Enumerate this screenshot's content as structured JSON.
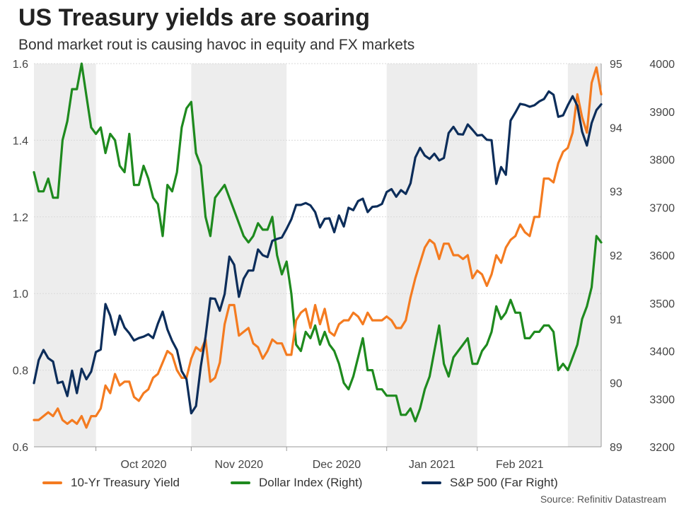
{
  "title": "US Treasury yields are soaring",
  "subtitle": "Bond market rout is causing havoc in equity and FX markets",
  "source": "Source: Refinitiv Datastream",
  "chart_data": {
    "type": "line",
    "title": "US Treasury yields are soaring",
    "x_tick_labels": [
      "Oct 2020",
      "Nov 2020",
      "Dec 2020",
      "Jan 2021",
      "Feb 2021"
    ],
    "n_points": 120,
    "shaded_periods": [
      [
        0,
        13
      ],
      [
        33,
        53
      ],
      [
        74,
        93
      ],
      [
        112,
        120
      ]
    ],
    "axes": {
      "left": {
        "ylim": [
          0.6,
          1.6
        ],
        "ticks": [
          "0.6",
          "0.8",
          "1.0",
          "1.2",
          "1.4",
          "1.6"
        ]
      },
      "right": {
        "ylim": [
          89,
          95
        ],
        "ticks": [
          "89",
          "90",
          "91",
          "92",
          "93",
          "94",
          "95"
        ]
      },
      "far_right": {
        "ylim": [
          3200,
          4000
        ],
        "ticks": [
          "3200",
          "3300",
          "3400",
          "3500",
          "3600",
          "3700",
          "3800",
          "3900",
          "4000"
        ]
      }
    },
    "series": [
      {
        "name": "10-Yr Treasury Yield",
        "axis": "left",
        "color": "#f47b20",
        "values": [
          0.67,
          0.67,
          0.68,
          0.69,
          0.68,
          0.7,
          0.67,
          0.66,
          0.67,
          0.66,
          0.68,
          0.65,
          0.68,
          0.68,
          0.7,
          0.76,
          0.74,
          0.79,
          0.76,
          0.77,
          0.77,
          0.73,
          0.72,
          0.74,
          0.75,
          0.78,
          0.79,
          0.82,
          0.85,
          0.84,
          0.8,
          0.78,
          0.78,
          0.83,
          0.86,
          0.85,
          0.88,
          0.77,
          0.78,
          0.82,
          0.92,
          0.97,
          0.97,
          0.89,
          0.9,
          0.91,
          0.87,
          0.86,
          0.83,
          0.85,
          0.88,
          0.87,
          0.87,
          0.84,
          0.84,
          0.93,
          0.95,
          0.96,
          0.91,
          0.97,
          0.92,
          0.96,
          0.9,
          0.89,
          0.92,
          0.93,
          0.93,
          0.95,
          0.94,
          0.92,
          0.95,
          0.93,
          0.93,
          0.93,
          0.94,
          0.93,
          0.91,
          0.91,
          0.93,
          0.99,
          1.04,
          1.08,
          1.12,
          1.14,
          1.13,
          1.09,
          1.13,
          1.13,
          1.1,
          1.1,
          1.09,
          1.1,
          1.04,
          1.06,
          1.05,
          1.02,
          1.05,
          1.1,
          1.08,
          1.12,
          1.14,
          1.15,
          1.18,
          1.16,
          1.15,
          1.2,
          1.2,
          1.3,
          1.3,
          1.29,
          1.34,
          1.37,
          1.38,
          1.42,
          1.52,
          1.46,
          1.42,
          1.55,
          1.59,
          1.52
        ]
      },
      {
        "name": "Dollar Index (Right)",
        "axis": "right",
        "color": "#1e8a1e",
        "values": [
          93.3,
          93.0,
          93.0,
          93.2,
          92.9,
          92.9,
          93.8,
          94.1,
          94.6,
          94.6,
          95.0,
          94.5,
          94.0,
          93.9,
          94.0,
          93.6,
          93.9,
          93.8,
          93.4,
          93.3,
          93.9,
          93.1,
          93.1,
          93.4,
          93.2,
          92.9,
          92.8,
          92.3,
          93.1,
          93.0,
          93.3,
          94.0,
          94.3,
          94.4,
          93.6,
          93.4,
          92.6,
          92.3,
          92.9,
          93.0,
          93.1,
          92.9,
          92.7,
          92.5,
          92.3,
          92.2,
          92.3,
          92.5,
          92.4,
          92.4,
          92.6,
          92.0,
          91.7,
          91.9,
          91.4,
          90.6,
          90.5,
          90.8,
          90.7,
          90.9,
          90.6,
          90.8,
          90.6,
          90.5,
          90.3,
          90.0,
          89.9,
          90.1,
          90.4,
          90.7,
          90.2,
          90.2,
          89.9,
          89.9,
          89.8,
          89.8,
          89.8,
          89.5,
          89.5,
          89.6,
          89.4,
          89.6,
          89.9,
          90.1,
          90.5,
          90.9,
          90.3,
          90.1,
          90.4,
          90.5,
          90.6,
          90.7,
          90.3,
          90.3,
          90.5,
          90.6,
          90.8,
          91.2,
          91.0,
          91.1,
          91.3,
          91.1,
          91.1,
          90.7,
          90.7,
          90.8,
          90.8,
          90.9,
          90.9,
          90.8,
          90.2,
          90.3,
          90.2,
          90.4,
          90.6,
          91.0,
          91.2,
          91.5,
          92.3,
          92.2
        ]
      },
      {
        "name": "S&P 500 (Far Right)",
        "axis": "far_right",
        "color": "#0c2d5a",
        "values": [
          3333,
          3381,
          3402,
          3385,
          3378,
          3333,
          3336,
          3306,
          3359,
          3312,
          3363,
          3341,
          3357,
          3398,
          3403,
          3498,
          3474,
          3434,
          3474,
          3449,
          3437,
          3422,
          3427,
          3430,
          3435,
          3427,
          3457,
          3482,
          3445,
          3421,
          3402,
          3358,
          3341,
          3270,
          3285,
          3368,
          3430,
          3510,
          3509,
          3484,
          3519,
          3597,
          3580,
          3513,
          3551,
          3568,
          3568,
          3612,
          3600,
          3596,
          3630,
          3634,
          3637,
          3655,
          3675,
          3705,
          3705,
          3709,
          3704,
          3690,
          3658,
          3676,
          3677,
          3648,
          3683,
          3660,
          3699,
          3694,
          3713,
          3718,
          3690,
          3701,
          3702,
          3707,
          3732,
          3738,
          3722,
          3736,
          3728,
          3750,
          3804,
          3824,
          3808,
          3801,
          3812,
          3798,
          3803,
          3855,
          3868,
          3853,
          3852,
          3873,
          3862,
          3850,
          3851,
          3841,
          3840,
          3749,
          3784,
          3768,
          3881,
          3898,
          3916,
          3914,
          3910,
          3913,
          3921,
          3926,
          3942,
          3935,
          3889,
          3892,
          3913,
          3932,
          3912,
          3858,
          3829,
          3876,
          3903,
          3915
        ]
      }
    ]
  }
}
